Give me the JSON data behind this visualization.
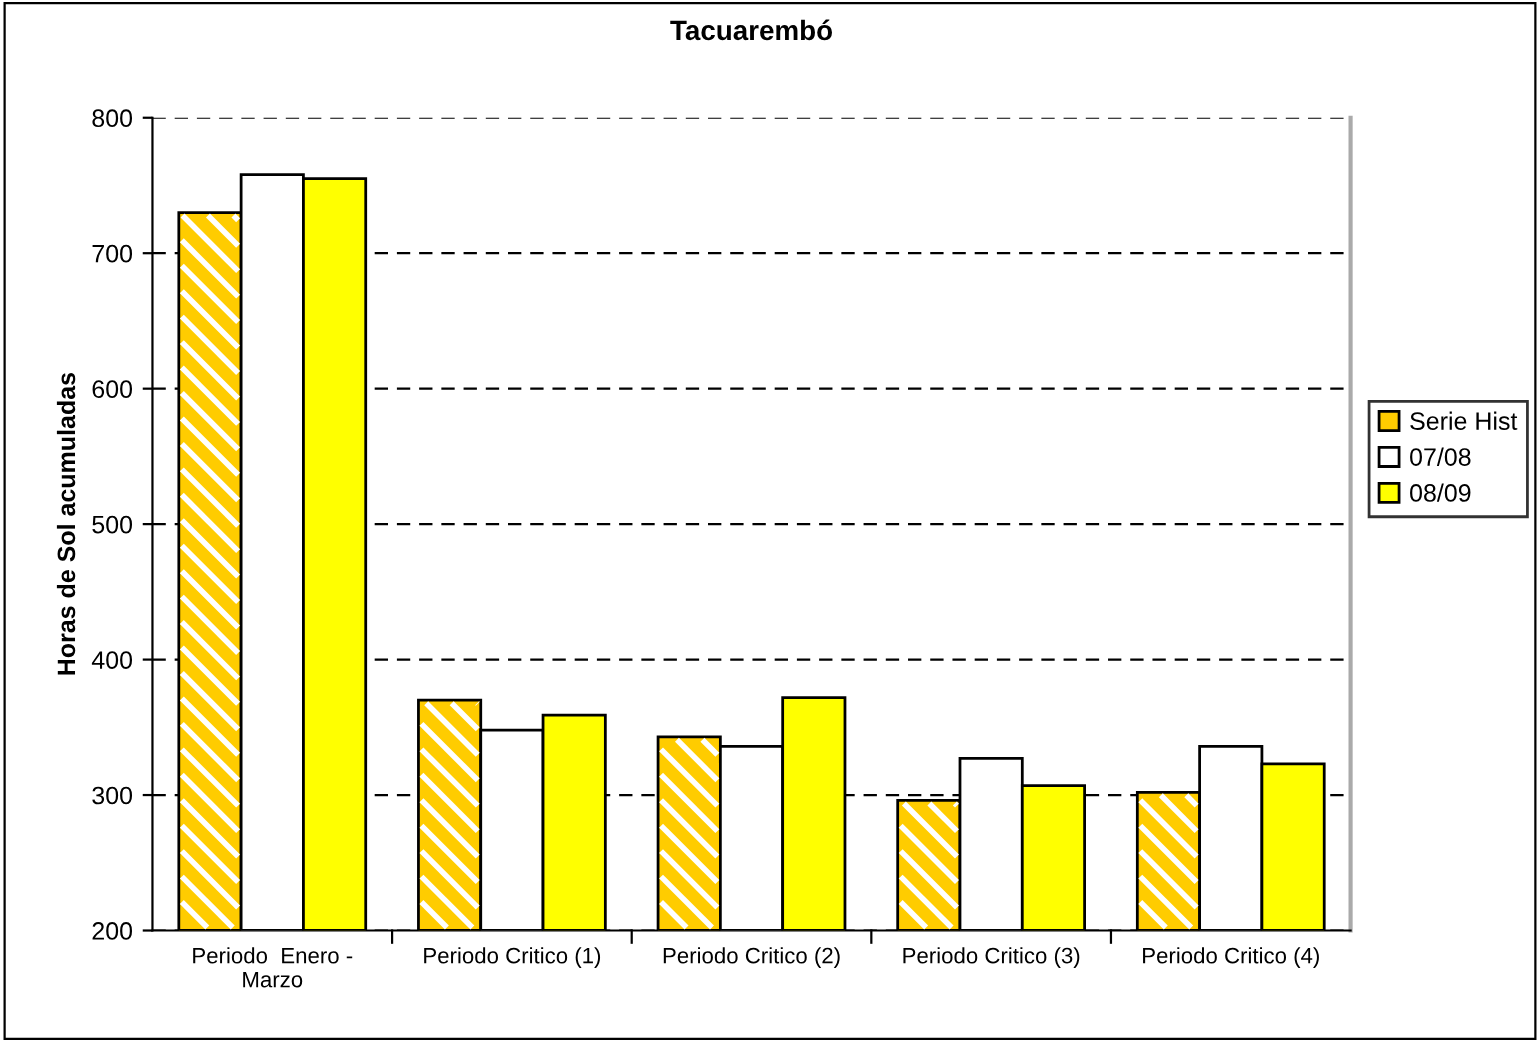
{
  "chart_data": {
    "type": "bar",
    "title": "Tacuarembó",
    "ylabel": "Horas de Sol acumuladas",
    "categories": [
      "Periodo  Enero -\nMarzo",
      "Periodo Critico (1)",
      "Periodo Critico (2)",
      "Periodo Critico (3)",
      "Periodo Critico (4)"
    ],
    "series": [
      {
        "name": "Serie Hist",
        "color": "#ffcc00",
        "values": [
          730,
          370,
          343,
          296,
          302
        ]
      },
      {
        "name": "07/08",
        "color": "#ffffff",
        "values": [
          758,
          348,
          336,
          327,
          336
        ]
      },
      {
        "name": "08/09",
        "color": "#ffff00",
        "values": [
          755,
          359,
          372,
          307,
          323
        ]
      }
    ],
    "ylim": [
      200,
      800
    ],
    "yticks": [
      200,
      300,
      400,
      500,
      600,
      700,
      800
    ],
    "grid": "y",
    "legend": "right"
  }
}
